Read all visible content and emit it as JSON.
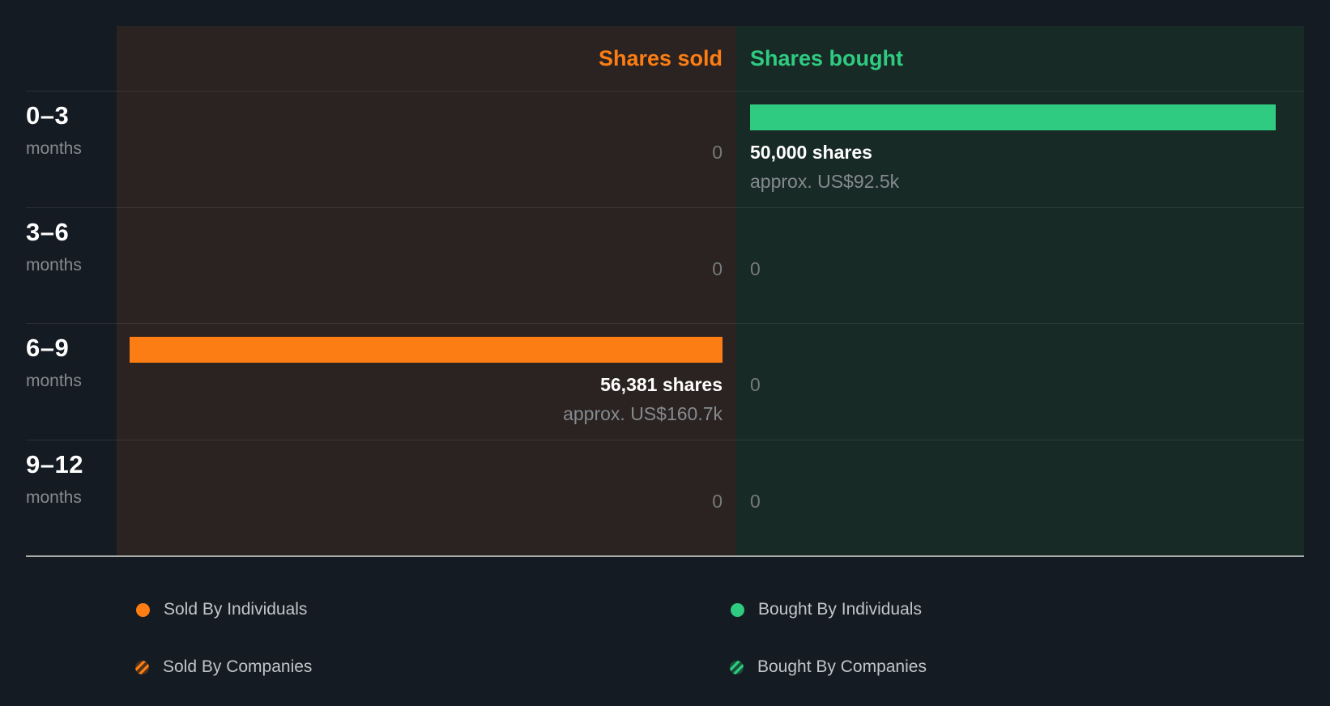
{
  "chart_data": {
    "type": "bar",
    "orientation": "horizontal",
    "layout": "two-panel diverging bar chart: shares sold on left panel, shares bought on right panel, one row per recency period",
    "categories": [
      "0–3",
      "3–6",
      "6–9",
      "9–12"
    ],
    "category_unit": "months",
    "series": [
      {
        "name": "Shares sold",
        "color": "#fc7d14",
        "values": [
          0,
          0,
          56381,
          0
        ],
        "value_labels": [
          "0",
          "0",
          "56,381 shares",
          "0"
        ],
        "approx_labels": [
          "",
          "",
          "approx. US$160.7k",
          ""
        ]
      },
      {
        "name": "Shares bought",
        "color": "#2ecb81",
        "values": [
          50000,
          0,
          0,
          0
        ],
        "value_labels": [
          "50,000 shares",
          "0",
          "0",
          "0"
        ],
        "approx_labels": [
          "approx. US$92.5k",
          "",
          "",
          ""
        ]
      }
    ],
    "max_value": 56381,
    "legend_position": "bottom",
    "gridlines": "horizontal row separators only"
  },
  "legend": [
    {
      "label": "Sold By Individuals",
      "color": "#fc7d14",
      "pattern": "solid",
      "stripe_color": ""
    },
    {
      "label": "Sold By Companies",
      "color": "#fc7d14",
      "pattern": "striped",
      "stripe_color": "#50331b"
    },
    {
      "label": "Bought By Individuals",
      "color": "#2ecb81",
      "pattern": "solid",
      "stripe_color": ""
    },
    {
      "label": "Bought By Companies",
      "color": "#2ecb81",
      "pattern": "striped",
      "stripe_color": "#17513a"
    }
  ],
  "colors": {
    "background": "#151b23",
    "sold_panel": "#2b2321",
    "bought_panel": "#182a25",
    "sold_accent": "#fc7d14",
    "bought_accent": "#2ecb81",
    "baseline": "#a9ada9",
    "text_primary": "#ffffff",
    "text_muted": "#858a8f",
    "text_zero": "#75797c",
    "legend_text": "#c2c5c8"
  }
}
